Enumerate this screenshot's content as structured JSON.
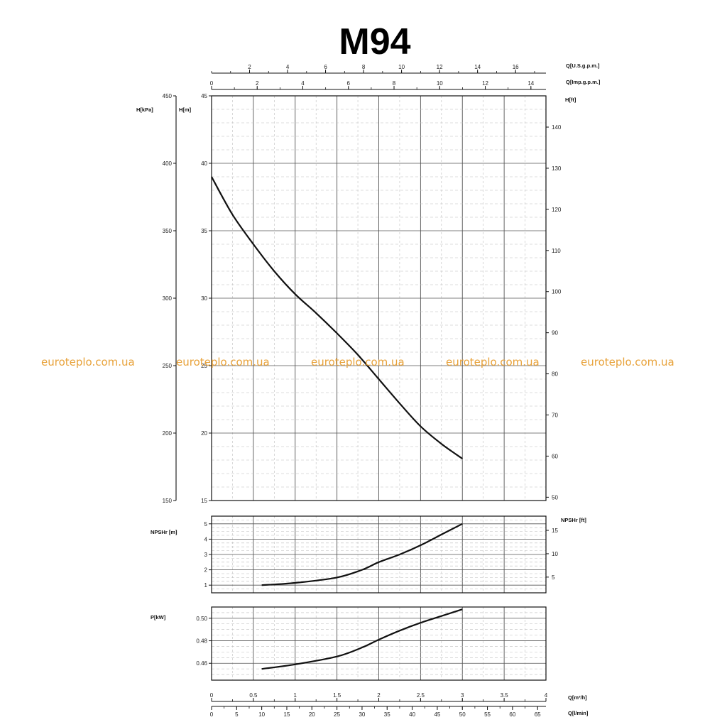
{
  "title": "M94",
  "watermark": "euroteplo.com.ua",
  "colors": {
    "curve": "#111111",
    "watermark": "#e8a23a",
    "major_grid": "#555555",
    "minor_grid": "#bdbdbd"
  },
  "axes": {
    "top_usgpm": {
      "label": "Q[U.S.g.p.m.]",
      "ticks": [
        "2",
        "4",
        "6",
        "8",
        "10",
        "12",
        "14",
        "16"
      ],
      "range": [
        0,
        17.6
      ]
    },
    "top_impgpm": {
      "label": "Q[Imp.g.p.m.]",
      "ticks": [
        "0",
        "2",
        "4",
        "6",
        "8",
        "10",
        "12",
        "14"
      ],
      "range": [
        0,
        14.66
      ]
    },
    "bottom_m3h": {
      "label": "Q[m³/h]",
      "ticks": [
        "0",
        "0.5",
        "1",
        "1.5",
        "2",
        "2.5",
        "3",
        "3.5",
        "4"
      ],
      "range": [
        0,
        4
      ]
    },
    "bottom_lmin": {
      "label": "Q[l/min]",
      "ticks": [
        "0",
        "5",
        "10",
        "15",
        "20",
        "25",
        "30",
        "35",
        "40",
        "45",
        "50",
        "55",
        "60",
        "65"
      ],
      "range": [
        0,
        66.67
      ]
    }
  },
  "chart_data": [
    {
      "type": "line",
      "name": "head",
      "xlabel": "Q[m³/h]",
      "ylabel": "H[m]",
      "ylabel_kpa": "H[kPa]",
      "ylabel_ft": "H[ft]",
      "xlim": [
        0,
        4
      ],
      "ylim": [
        15,
        45
      ],
      "ylim_kpa": [
        150,
        450
      ],
      "ylim_ft": [
        49.2,
        147.6
      ],
      "yticks": [
        "15",
        "20",
        "25",
        "30",
        "35",
        "40",
        "45"
      ],
      "yticks_kpa": [
        "150",
        "200",
        "250",
        "300",
        "350",
        "400",
        "450"
      ],
      "yticks_ft": [
        "50",
        "60",
        "70",
        "80",
        "90",
        "100",
        "110",
        "120",
        "130",
        "140"
      ],
      "grid": true,
      "series": [
        {
          "x": [
            0,
            0.25,
            0.5,
            0.75,
            1.0,
            1.25,
            1.5,
            1.75,
            2.0,
            2.25,
            2.5,
            2.75,
            3.0
          ],
          "y": [
            39,
            36.2,
            34,
            32,
            30.3,
            28.9,
            27.4,
            25.8,
            24.0,
            22.2,
            20.5,
            19.2,
            18.1
          ]
        }
      ]
    },
    {
      "type": "line",
      "name": "npsh",
      "xlabel": "Q[m³/h]",
      "ylabel": "NPSHr [m]",
      "ylabel_ft": "NPSHr [ft]",
      "xlim": [
        0,
        4
      ],
      "ylim": [
        0.5,
        5.5
      ],
      "ylim_ft": [
        1.64,
        18.04
      ],
      "yticks": [
        "1",
        "2",
        "3",
        "4",
        "5"
      ],
      "yticks_ft": [
        "5",
        "10",
        "15"
      ],
      "grid": true,
      "series": [
        {
          "x": [
            0.6,
            1.0,
            1.5,
            1.8,
            2.0,
            2.25,
            2.5,
            2.75,
            3.0
          ],
          "y": [
            1.0,
            1.15,
            1.5,
            2.0,
            2.5,
            3.0,
            3.6,
            4.3,
            5.0
          ]
        }
      ]
    },
    {
      "type": "line",
      "name": "power",
      "xlabel": "Q[m³/h]",
      "ylabel": "P[kW]",
      "xlim": [
        0,
        4
      ],
      "ylim": [
        0.445,
        0.51
      ],
      "yticks": [
        "0.46",
        "0.48",
        "0.50"
      ],
      "grid": true,
      "series": [
        {
          "x": [
            0.6,
            1.0,
            1.5,
            1.8,
            2.0,
            2.25,
            2.5,
            2.75,
            3.0
          ],
          "y": [
            0.455,
            0.459,
            0.466,
            0.474,
            0.481,
            0.489,
            0.496,
            0.502,
            0.508
          ]
        }
      ]
    }
  ]
}
